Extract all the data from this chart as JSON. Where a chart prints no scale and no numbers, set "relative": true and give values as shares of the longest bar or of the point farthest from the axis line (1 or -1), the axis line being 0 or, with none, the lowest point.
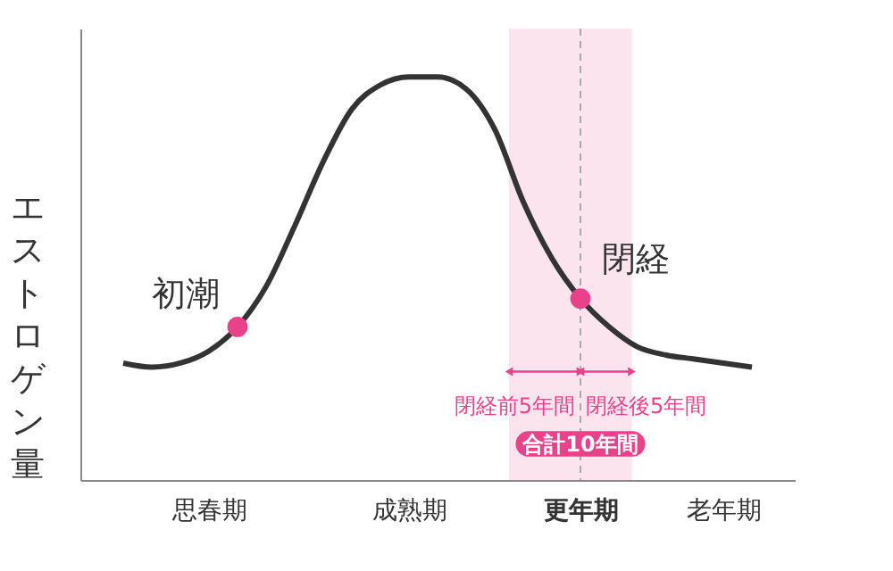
{
  "chart_data": {
    "type": "line",
    "relative": true,
    "ylabel": "エストロゲン量",
    "categories": [
      null,
      null,
      null,
      "思春期",
      null,
      null,
      null,
      null,
      null,
      null,
      "成熟期",
      null,
      null,
      null,
      null,
      null,
      "更年期",
      null,
      null,
      null,
      null,
      "老年期",
      null
    ],
    "series": [
      {
        "color": "#333333",
        "values": [
          0.29,
          0.28,
          0.29,
          0.32,
          0.38,
          0.48,
          0.63,
          0.79,
          0.92,
          0.98,
          1.0,
          1.0,
          0.97,
          0.87,
          0.69,
          0.55,
          0.45,
          0.38,
          0.33,
          0.31,
          0.3,
          0.29,
          0.28
        ]
      },
      {
        "type": "scatter",
        "color": "#e9428b",
        "values": [
          null,
          null,
          null,
          null,
          0.38,
          null,
          null,
          null,
          null,
          null,
          null,
          null,
          null,
          null,
          null,
          null,
          0.45,
          null,
          null,
          null,
          null,
          null,
          null
        ]
      }
    ],
    "annotations": [
      "初潮",
      "閉経",
      "閉経前5年間",
      "閉経後5年間",
      "合計10年間"
    ],
    "line_style": "solid"
  }
}
